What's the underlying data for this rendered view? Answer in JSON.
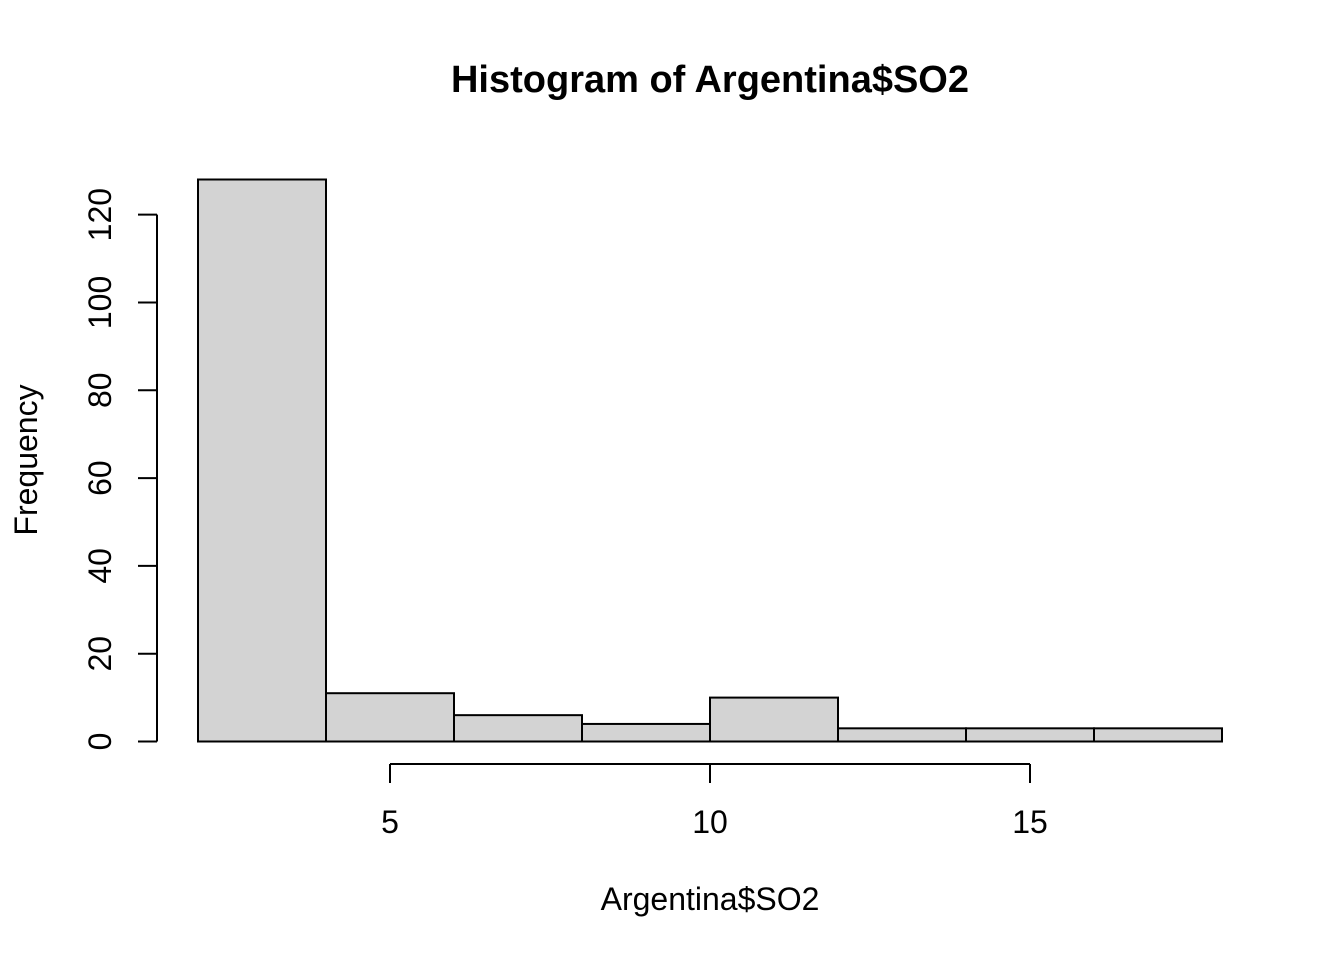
{
  "chart_data": {
    "type": "bar",
    "title": "Histogram of Argentina$SO2",
    "xlabel": "Argentina$SO2",
    "ylabel": "Frequency",
    "bins": [
      {
        "from": 2,
        "to": 4,
        "count": 128
      },
      {
        "from": 4,
        "to": 6,
        "count": 11
      },
      {
        "from": 6,
        "to": 8,
        "count": 6
      },
      {
        "from": 8,
        "to": 10,
        "count": 4
      },
      {
        "from": 10,
        "to": 12,
        "count": 10
      },
      {
        "from": 12,
        "to": 14,
        "count": 3
      },
      {
        "from": 14,
        "to": 16,
        "count": 3
      },
      {
        "from": 16,
        "to": 18,
        "count": 3
      }
    ],
    "xlim": [
      2,
      18
    ],
    "ylim": [
      0,
      128
    ],
    "x_ticks": [
      5,
      10,
      15
    ],
    "y_ticks": [
      0,
      20,
      40,
      60,
      80,
      100,
      120
    ],
    "bar_color": "#d3d3d3",
    "grid": false
  }
}
